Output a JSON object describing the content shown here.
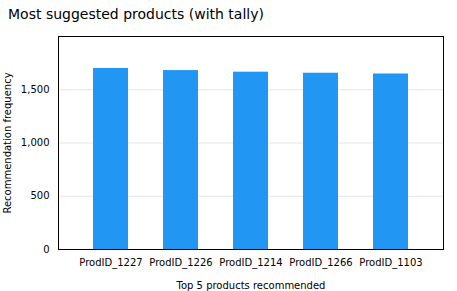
{
  "chart_data": {
    "type": "bar",
    "title": "Most suggested products (with tally)",
    "xlabel": "Top 5 products recommended",
    "ylabel": "Recommendation frequency",
    "categories": [
      "ProdID_1227",
      "ProdID_1226",
      "ProdID_1214",
      "ProdID_1266",
      "ProdID_1103"
    ],
    "values": [
      1700,
      1680,
      1665,
      1655,
      1648
    ],
    "color": "#2196F3",
    "ylim": [
      0,
      2000
    ],
    "yticks": [
      0,
      500,
      1000,
      1500
    ],
    "grid": true
  }
}
